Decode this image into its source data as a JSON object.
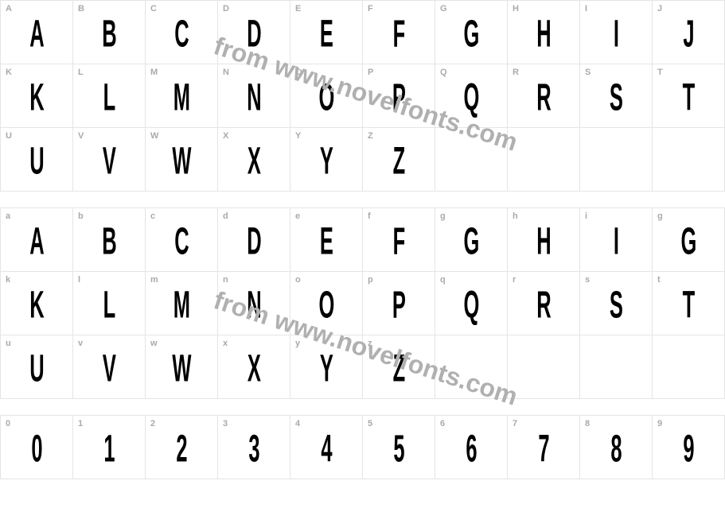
{
  "watermark_text": "from www.novelfonts.com",
  "watermark_color": "#b0b0b0",
  "border_color": "#e5e5e5",
  "label_color": "#aaaaaa",
  "glyph_color": "#000000",
  "background_color": "#ffffff",
  "sections": [
    {
      "name": "uppercase",
      "cells": [
        {
          "label": "A",
          "glyph": "A"
        },
        {
          "label": "B",
          "glyph": "B"
        },
        {
          "label": "C",
          "glyph": "C"
        },
        {
          "label": "D",
          "glyph": "D"
        },
        {
          "label": "E",
          "glyph": "E"
        },
        {
          "label": "F",
          "glyph": "F"
        },
        {
          "label": "G",
          "glyph": "G"
        },
        {
          "label": "H",
          "glyph": "H"
        },
        {
          "label": "I",
          "glyph": "I"
        },
        {
          "label": "J",
          "glyph": "J"
        },
        {
          "label": "K",
          "glyph": "K"
        },
        {
          "label": "L",
          "glyph": "L"
        },
        {
          "label": "M",
          "glyph": "M"
        },
        {
          "label": "N",
          "glyph": "N"
        },
        {
          "label": "O",
          "glyph": "O"
        },
        {
          "label": "P",
          "glyph": "P"
        },
        {
          "label": "Q",
          "glyph": "Q"
        },
        {
          "label": "R",
          "glyph": "R"
        },
        {
          "label": "S",
          "glyph": "S"
        },
        {
          "label": "T",
          "glyph": "T"
        },
        {
          "label": "U",
          "glyph": "U"
        },
        {
          "label": "V",
          "glyph": "V"
        },
        {
          "label": "W",
          "glyph": "W"
        },
        {
          "label": "X",
          "glyph": "X"
        },
        {
          "label": "Y",
          "glyph": "Y"
        },
        {
          "label": "Z",
          "glyph": "Z"
        },
        {
          "label": "",
          "glyph": ""
        },
        {
          "label": "",
          "glyph": ""
        },
        {
          "label": "",
          "glyph": ""
        },
        {
          "label": "",
          "glyph": ""
        }
      ]
    },
    {
      "name": "lowercase",
      "cells": [
        {
          "label": "a",
          "glyph": "A"
        },
        {
          "label": "b",
          "glyph": "B"
        },
        {
          "label": "c",
          "glyph": "C"
        },
        {
          "label": "d",
          "glyph": "D"
        },
        {
          "label": "e",
          "glyph": "E"
        },
        {
          "label": "f",
          "glyph": "F"
        },
        {
          "label": "g",
          "glyph": "G"
        },
        {
          "label": "h",
          "glyph": "H"
        },
        {
          "label": "i",
          "glyph": "I"
        },
        {
          "label": "g",
          "glyph": "G"
        },
        {
          "label": "k",
          "glyph": "K"
        },
        {
          "label": "l",
          "glyph": "L"
        },
        {
          "label": "m",
          "glyph": "M"
        },
        {
          "label": "n",
          "glyph": "N"
        },
        {
          "label": "o",
          "glyph": "O"
        },
        {
          "label": "p",
          "glyph": "P"
        },
        {
          "label": "q",
          "glyph": "Q"
        },
        {
          "label": "r",
          "glyph": "R"
        },
        {
          "label": "s",
          "glyph": "S"
        },
        {
          "label": "t",
          "glyph": "T"
        },
        {
          "label": "u",
          "glyph": "U"
        },
        {
          "label": "v",
          "glyph": "V"
        },
        {
          "label": "w",
          "glyph": "W"
        },
        {
          "label": "x",
          "glyph": "X"
        },
        {
          "label": "y",
          "glyph": "Y"
        },
        {
          "label": "z",
          "glyph": "Z"
        },
        {
          "label": "",
          "glyph": ""
        },
        {
          "label": "",
          "glyph": ""
        },
        {
          "label": "",
          "glyph": ""
        },
        {
          "label": "",
          "glyph": ""
        }
      ]
    },
    {
      "name": "digits",
      "cells": [
        {
          "label": "0",
          "glyph": "0"
        },
        {
          "label": "1",
          "glyph": "1"
        },
        {
          "label": "2",
          "glyph": "2"
        },
        {
          "label": "3",
          "glyph": "3"
        },
        {
          "label": "4",
          "glyph": "4"
        },
        {
          "label": "5",
          "glyph": "5"
        },
        {
          "label": "6",
          "glyph": "6"
        },
        {
          "label": "7",
          "glyph": "7"
        },
        {
          "label": "8",
          "glyph": "8"
        },
        {
          "label": "9",
          "glyph": "9"
        }
      ]
    }
  ]
}
